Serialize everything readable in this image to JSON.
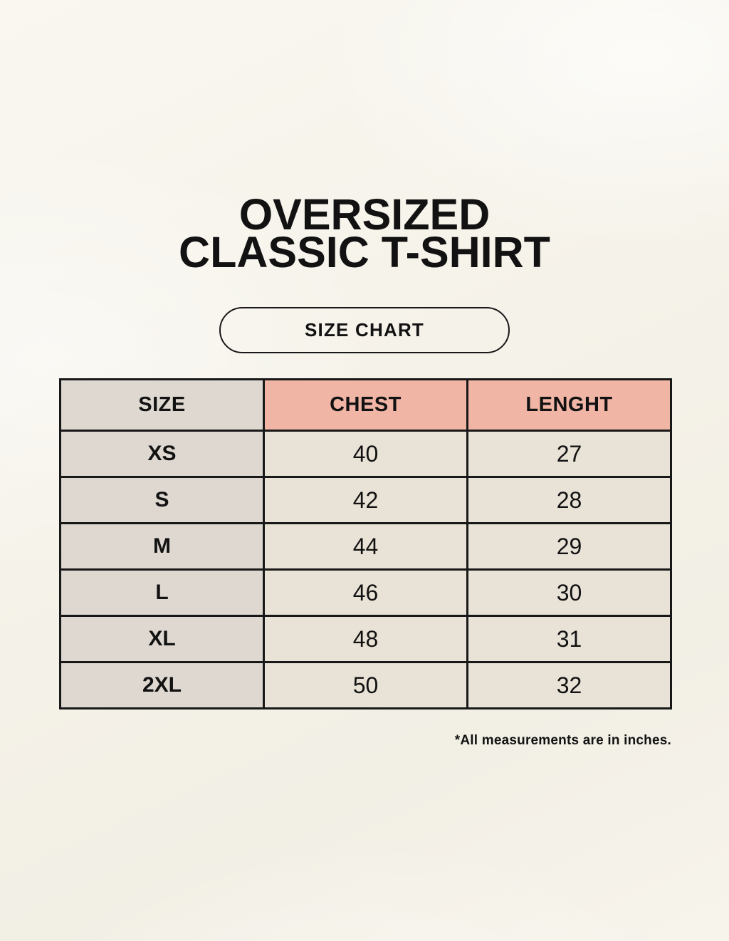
{
  "page": {
    "title_line1": "OVERSIZED",
    "title_line2": "CLASSIC T-SHIRT",
    "badge_label": "SIZE CHART",
    "footnote": "*All measurements are in inches."
  },
  "size_chart": {
    "columns": [
      "SIZE",
      "CHEST",
      "LENGHT"
    ],
    "rows": [
      {
        "size": "XS",
        "chest": "40",
        "length": "27"
      },
      {
        "size": "S",
        "chest": "42",
        "length": "28"
      },
      {
        "size": "M",
        "chest": "44",
        "length": "29"
      },
      {
        "size": "L",
        "chest": "46",
        "length": "30"
      },
      {
        "size": "XL",
        "chest": "48",
        "length": "31"
      },
      {
        "size": "2XL",
        "chest": "50",
        "length": "32"
      }
    ]
  },
  "colors": {
    "background": "#f5f2e9",
    "table_header_accent": "#f0b5a5",
    "table_size_column": "#ded8d1",
    "table_cell": "#e9e3d7",
    "border": "#181818",
    "text": "#121212"
  },
  "chart_data": {
    "type": "table",
    "title": "OVERSIZED CLASSIC T-SHIRT — SIZE CHART",
    "columns": [
      "SIZE",
      "CHEST",
      "LENGHT"
    ],
    "rows": [
      [
        "XS",
        40,
        27
      ],
      [
        "S",
        42,
        28
      ],
      [
        "M",
        44,
        29
      ],
      [
        "L",
        46,
        30
      ],
      [
        "XL",
        48,
        31
      ],
      [
        "2XL",
        50,
        32
      ]
    ],
    "units_note": "*All measurements are in inches.",
    "layout": "3-column bordered table; first column gray, header accent columns salmon"
  }
}
